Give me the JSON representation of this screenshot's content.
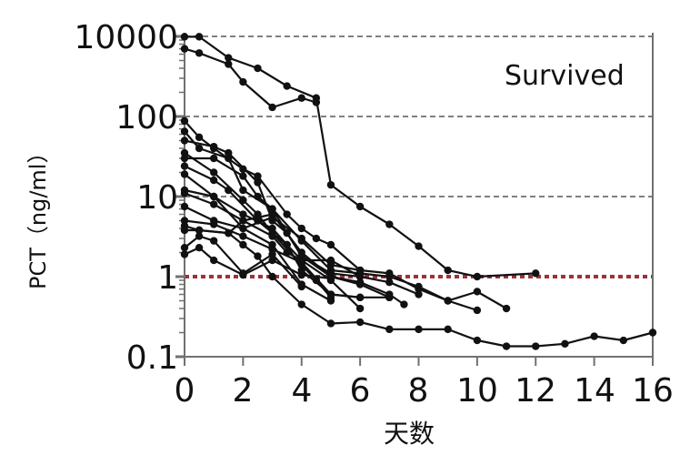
{
  "chart_data": {
    "type": "line",
    "title": "",
    "annotation": "Survived",
    "xlabel": "天数",
    "ylabel": "PCT（ng/ml）",
    "x_ticks": [
      "0",
      "2",
      "4",
      "6",
      "8",
      "10",
      "12",
      "14",
      "16"
    ],
    "y_ticks": [
      "10000",
      "100",
      "10",
      "1",
      "0.1"
    ],
    "xlim": [
      0,
      16
    ],
    "y_scale": "log",
    "grid": "horizontal dashed at y tick positions",
    "reference_line": {
      "y": 1,
      "style": "dotted",
      "color": "#a0303c"
    },
    "line_color": "#111111",
    "marker": "filled circle",
    "series": [
      {
        "name": "patient-1",
        "points": [
          [
            0,
            990
          ],
          [
            0.5,
            990
          ],
          [
            1.5,
            540
          ],
          [
            2.5,
            400
          ],
          [
            3.5,
            240
          ],
          [
            4.5,
            170
          ],
          [
            5,
            14
          ],
          [
            6,
            7.5
          ],
          [
            7,
            4.5
          ],
          [
            8,
            2.4
          ],
          [
            9,
            1.2
          ],
          [
            10,
            1.0
          ],
          [
            12,
            1.1
          ]
        ]
      },
      {
        "name": "patient-2",
        "points": [
          [
            0,
            700
          ],
          [
            0.5,
            620
          ],
          [
            1.5,
            450
          ],
          [
            2,
            270
          ],
          [
            3,
            130
          ],
          [
            4,
            170
          ],
          [
            4.5,
            150
          ]
        ]
      },
      {
        "name": "patient-3",
        "points": [
          [
            0,
            88
          ],
          [
            0.5,
            55
          ],
          [
            1,
            40
          ],
          [
            2,
            22
          ],
          [
            2.5,
            18
          ],
          [
            3.5,
            6
          ],
          [
            4,
            4
          ],
          [
            4.5,
            3
          ],
          [
            5,
            2.5
          ],
          [
            6,
            1.2
          ],
          [
            7,
            1.1
          ],
          [
            8,
            0.7
          ],
          [
            9,
            0.5
          ],
          [
            10,
            0.65
          ],
          [
            11,
            0.4
          ]
        ]
      },
      {
        "name": "patient-4",
        "points": [
          [
            0,
            65
          ],
          [
            0.5,
            40
          ],
          [
            1.5,
            30
          ],
          [
            2,
            12
          ],
          [
            3,
            7
          ],
          [
            4,
            2.8
          ],
          [
            5,
            1.2
          ],
          [
            6,
            1.1
          ],
          [
            7,
            1.0
          ],
          [
            8,
            0.75
          ],
          [
            9,
            0.5
          ],
          [
            10,
            0.38
          ]
        ]
      },
      {
        "name": "patient-5",
        "points": [
          [
            0,
            50
          ],
          [
            1,
            42
          ],
          [
            1.5,
            35
          ],
          [
            2.5,
            15
          ],
          [
            3,
            5
          ],
          [
            3.5,
            3.5
          ],
          [
            4,
            1.8
          ],
          [
            5,
            1.0
          ],
          [
            6,
            0.85
          ],
          [
            7,
            0.6
          ],
          [
            7.5,
            0.45
          ]
        ]
      },
      {
        "name": "patient-6",
        "points": [
          [
            0,
            35
          ],
          [
            1,
            20
          ],
          [
            2,
            9
          ],
          [
            2.5,
            6
          ],
          [
            3,
            3.5
          ],
          [
            4,
            1.4
          ],
          [
            4.5,
            0.9
          ],
          [
            5,
            0.55
          ]
        ]
      },
      {
        "name": "patient-7",
        "points": [
          [
            0,
            30
          ],
          [
            1,
            30
          ],
          [
            2,
            18
          ],
          [
            2.5,
            10
          ],
          [
            3,
            7
          ],
          [
            4,
            1.8
          ],
          [
            5,
            1.1
          ],
          [
            6,
            1.0
          ],
          [
            7,
            0.85
          ],
          [
            8,
            0.6
          ]
        ]
      },
      {
        "name": "patient-8",
        "points": [
          [
            0,
            24
          ],
          [
            1,
            16
          ],
          [
            1.5,
            12
          ],
          [
            2.5,
            5
          ],
          [
            3.5,
            2.5
          ],
          [
            4,
            1.6
          ],
          [
            5,
            0.9
          ],
          [
            6,
            0.4
          ]
        ]
      },
      {
        "name": "patient-9",
        "points": [
          [
            0,
            19
          ],
          [
            1,
            10
          ],
          [
            2,
            6
          ],
          [
            3,
            4
          ],
          [
            3.5,
            2.5
          ],
          [
            4,
            1.2
          ],
          [
            5,
            0.6
          ],
          [
            6,
            0.55
          ],
          [
            7,
            0.55
          ]
        ]
      },
      {
        "name": "patient-10",
        "points": [
          [
            0,
            12
          ],
          [
            1,
            10
          ],
          [
            2,
            4
          ],
          [
            3,
            2.5
          ],
          [
            4,
            0.8
          ],
          [
            5,
            0.5
          ]
        ]
      },
      {
        "name": "patient-11",
        "points": [
          [
            0,
            11
          ],
          [
            1,
            8
          ],
          [
            2,
            5
          ],
          [
            3,
            3.2
          ],
          [
            3.5,
            2.0
          ],
          [
            4,
            1.6
          ],
          [
            5,
            1.6
          ],
          [
            6,
            1.0
          ]
        ]
      },
      {
        "name": "patient-12",
        "points": [
          [
            0,
            7.5
          ],
          [
            1,
            5
          ],
          [
            2,
            4
          ],
          [
            3,
            5.5
          ],
          [
            4,
            3
          ],
          [
            5,
            1.4
          ],
          [
            6,
            1.2
          ]
        ]
      },
      {
        "name": "patient-13",
        "points": [
          [
            0,
            5
          ],
          [
            1,
            4.5
          ],
          [
            2,
            3.2
          ],
          [
            3,
            2.2
          ],
          [
            4,
            1.5
          ],
          [
            5,
            0.6
          ],
          [
            6,
            0.55
          ]
        ]
      },
      {
        "name": "patient-14",
        "points": [
          [
            0,
            4.3
          ],
          [
            0.5,
            3.8
          ],
          [
            1.5,
            3.5
          ],
          [
            2,
            2.5
          ],
          [
            2.5,
            1.8
          ],
          [
            3,
            1.0
          ],
          [
            4,
            0.45
          ],
          [
            5,
            0.26
          ],
          [
            6,
            0.27
          ],
          [
            7,
            0.22
          ],
          [
            8,
            0.22
          ],
          [
            9,
            0.22
          ],
          [
            10,
            0.16
          ],
          [
            11,
            0.135
          ],
          [
            12,
            0.135
          ],
          [
            13,
            0.145
          ],
          [
            14,
            0.18
          ],
          [
            15,
            0.16
          ],
          [
            16,
            0.2
          ]
        ]
      },
      {
        "name": "patient-15",
        "points": [
          [
            0,
            3.8
          ],
          [
            0.5,
            3.8
          ],
          [
            1.5,
            3.5
          ],
          [
            2,
            5
          ],
          [
            3,
            6
          ],
          [
            4,
            2
          ],
          [
            5,
            1.0
          ],
          [
            6,
            0.8
          ],
          [
            7,
            0.55
          ]
        ]
      },
      {
        "name": "patient-16",
        "points": [
          [
            0,
            2.3
          ],
          [
            0.5,
            3.2
          ],
          [
            1,
            2.8
          ],
          [
            2,
            1.1
          ],
          [
            3,
            1.9
          ],
          [
            4,
            0.75
          ]
        ]
      },
      {
        "name": "patient-17",
        "points": [
          [
            0,
            1.9
          ],
          [
            0.5,
            2.3
          ],
          [
            1,
            1.6
          ],
          [
            2,
            1.05
          ],
          [
            3,
            1.6
          ],
          [
            4,
            1.05
          ],
          [
            5,
            0.95
          ]
        ]
      }
    ]
  },
  "axes": {
    "y_ticks": [
      "10000",
      "100",
      "10",
      "1",
      "0.1"
    ],
    "x_ticks": [
      "0",
      "2",
      "4",
      "6",
      "8",
      "10",
      "12",
      "14",
      "16"
    ],
    "xlabel": "天数",
    "ylabel": "PCT（ng/ml）",
    "annotation": "Survived"
  }
}
